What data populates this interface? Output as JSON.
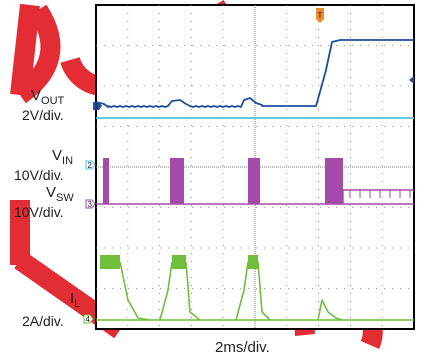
{
  "chart_data": {
    "type": "line",
    "title": "",
    "xlabel": "2ms/div.",
    "x_divisions": 10,
    "y_divisions": 8,
    "grid": true,
    "watermark": "DO NOT COPY",
    "channels": [
      {
        "name": "VOUT",
        "label_main": "V",
        "label_sub": "OUT",
        "scale": "2V/div.",
        "marker": "1",
        "color": "#1f4f9e"
      },
      {
        "name": "VIN",
        "label_main": "V",
        "label_sub": "IN",
        "scale": "10V/div.",
        "marker": "2",
        "color": "#4ec3d6"
      },
      {
        "name": "VSW",
        "label_main": "V",
        "label_sub": "SW",
        "scale": "10V/div.",
        "marker": "3",
        "color": "#a54aa8"
      },
      {
        "name": "IL",
        "label_main": "I",
        "label_sub": "L",
        "scale": "2A/div.",
        "marker": "4",
        "color": "#6fbf3a"
      }
    ],
    "trigger_marker": "T"
  }
}
